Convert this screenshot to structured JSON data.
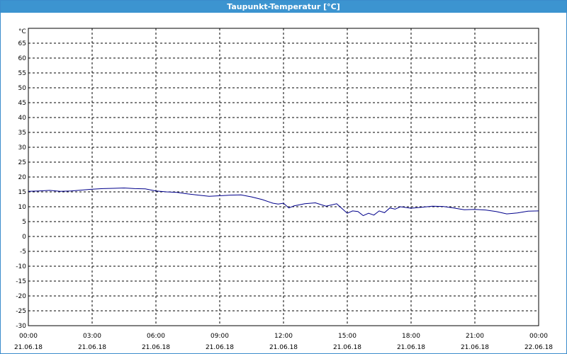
{
  "window": {
    "title": "Taupunkt-Temperatur [°C]"
  },
  "colors": {
    "titlebar": "#3c94d0",
    "series": "#00008b",
    "grid": "#000000"
  },
  "chart_data": {
    "type": "line",
    "title": "Taupunkt-Temperatur [°C]",
    "ylabel": "°C",
    "ylim": [
      -30,
      70
    ],
    "yticks": [
      "65",
      "60",
      "55",
      "50",
      "45",
      "40",
      "35",
      "30",
      "25",
      "20",
      "15",
      "10",
      "5",
      "0",
      "-5",
      "-10",
      "-15",
      "-20",
      "-25",
      "-30"
    ],
    "xlim_hours": [
      0,
      24
    ],
    "xticks": [
      {
        "time": "00:00",
        "date": "21.06.18"
      },
      {
        "time": "03:00",
        "date": "21.06.18"
      },
      {
        "time": "06:00",
        "date": "21.06.18"
      },
      {
        "time": "09:00",
        "date": "21.06.18"
      },
      {
        "time": "12:00",
        "date": "21.06.18"
      },
      {
        "time": "15:00",
        "date": "21.06.18"
      },
      {
        "time": "18:00",
        "date": "21.06.18"
      },
      {
        "time": "21:00",
        "date": "21.06.18"
      },
      {
        "time": "00:00",
        "date": "22.06.18"
      }
    ],
    "grid": true,
    "series": [
      {
        "x": [
          0,
          0.5,
          1,
          1.5,
          2,
          2.5,
          3,
          3.5,
          4,
          4.5,
          5,
          5.5,
          6,
          6.5,
          7,
          7.5,
          8,
          8.5,
          9,
          9.5,
          10,
          10.5,
          11,
          11.5,
          11.75,
          12,
          12.25,
          12.5,
          13,
          13.5,
          14,
          14.5,
          14.75,
          15,
          15.25,
          15.5,
          15.75,
          16,
          16.25,
          16.5,
          16.75,
          17,
          17.25,
          17.5,
          18,
          18.5,
          19,
          19.5,
          20,
          20.5,
          21,
          21.5,
          22,
          22.5,
          23,
          23.5,
          24
        ],
        "y": [
          15.2,
          15.3,
          15.5,
          15.2,
          15.3,
          15.6,
          15.9,
          16.1,
          16.2,
          16.3,
          16.1,
          16.0,
          15.3,
          15.0,
          14.8,
          14.3,
          13.9,
          13.5,
          13.7,
          13.9,
          14.0,
          13.3,
          12.4,
          11.2,
          10.9,
          11.2,
          9.6,
          10.3,
          11.0,
          11.3,
          10.2,
          11.0,
          9.4,
          7.8,
          8.6,
          8.4,
          7.0,
          7.8,
          7.2,
          8.6,
          8.0,
          9.6,
          9.2,
          10.0,
          9.5,
          9.8,
          10.2,
          10.1,
          9.6,
          9.0,
          9.1,
          8.9,
          8.4,
          7.6,
          7.9,
          8.5,
          8.6
        ]
      }
    ]
  }
}
